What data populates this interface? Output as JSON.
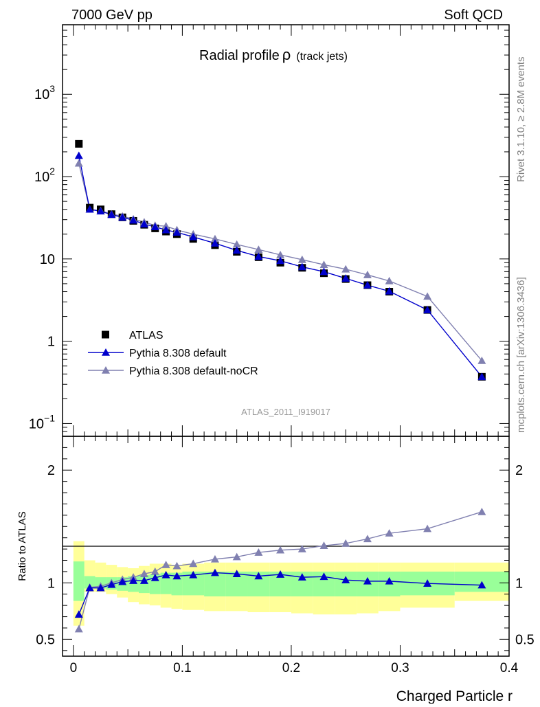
{
  "header": {
    "left": "7000 GeV pp",
    "right": "Soft QCD"
  },
  "side_labels": {
    "rivet": "Rivet 3.1.10, ≥ 2.8M events",
    "source": "mcplots.cern.ch [arXiv:1306.3436]"
  },
  "chart_data": [
    {
      "type": "line",
      "title": "Radial profile",
      "title_symbol": "ρ",
      "title_suffix": "(track jets)",
      "watermark": "ATLAS_2011_I919017",
      "yscale": "log",
      "xlim": [
        -0.01,
        0.4
      ],
      "ylim": [
        0.07,
        7000
      ],
      "yticks": [
        {
          "value": 0.1,
          "label": "10",
          "sup": "−1"
        },
        {
          "value": 1,
          "label": "1",
          "sup": ""
        },
        {
          "value": 10,
          "label": "10",
          "sup": ""
        },
        {
          "value": 100,
          "label": "10",
          "sup": "2"
        },
        {
          "value": 1000,
          "label": "10",
          "sup": "3"
        }
      ],
      "legend": {
        "placement": "middle-left"
      },
      "x": [
        0.005,
        0.015,
        0.025,
        0.035,
        0.045,
        0.055,
        0.065,
        0.075,
        0.085,
        0.095,
        0.11,
        0.13,
        0.15,
        0.17,
        0.19,
        0.21,
        0.23,
        0.25,
        0.27,
        0.29,
        0.325,
        0.375
      ],
      "series": [
        {
          "name": "ATLAS",
          "style": "square",
          "color": "#000000",
          "values": [
            250,
            42,
            40,
            35,
            32,
            29,
            26,
            23.5,
            21.5,
            20,
            17.5,
            14.7,
            12.2,
            10.5,
            9,
            7.8,
            6.7,
            5.7,
            4.8,
            4.0,
            2.4,
            0.37
          ]
        },
        {
          "name": "Pythia 8.308 default",
          "style": "triangle",
          "color": "#0000cc",
          "values": [
            180,
            40,
            38,
            34.5,
            32,
            29.5,
            26.5,
            24.5,
            22.5,
            21,
            18.5,
            15.5,
            12.7,
            10.7,
            9.5,
            8.0,
            7.0,
            5.8,
            4.8,
            4.05,
            2.4,
            0.37
          ]
        },
        {
          "name": "Pythia 8.308 default-noCR",
          "style": "triangle",
          "color": "#8080b0",
          "values": [
            145,
            40,
            38.5,
            35,
            33,
            30.5,
            28,
            25.5,
            25,
            22.5,
            20,
            17.5,
            15,
            13,
            11.2,
            9.8,
            8.5,
            7.5,
            6.4,
            5.4,
            3.5,
            0.58
          ]
        }
      ]
    },
    {
      "type": "line",
      "ylabel": "Ratio to ATLAS",
      "xlabel": "Charged Particle r",
      "xlim": [
        -0.01,
        0.4
      ],
      "ylim": [
        0.35,
        2.3
      ],
      "yticks": [
        0.5,
        1,
        2
      ],
      "ytick_labels": [
        "0.5",
        "1",
        "2"
      ],
      "xticks": [
        0,
        0.1,
        0.2,
        0.3,
        0.4
      ],
      "xtick_labels": [
        "0",
        "0.1",
        "0.2",
        "0.3",
        "0.4"
      ],
      "bands": {
        "bins": [
          [
            0.0,
            0.01
          ],
          [
            0.01,
            0.02
          ],
          [
            0.02,
            0.03
          ],
          [
            0.03,
            0.04
          ],
          [
            0.04,
            0.05
          ],
          [
            0.05,
            0.06
          ],
          [
            0.06,
            0.07
          ],
          [
            0.07,
            0.08
          ],
          [
            0.08,
            0.09
          ],
          [
            0.09,
            0.1
          ],
          [
            0.1,
            0.12
          ],
          [
            0.12,
            0.14
          ],
          [
            0.14,
            0.16
          ],
          [
            0.16,
            0.18
          ],
          [
            0.18,
            0.2
          ],
          [
            0.2,
            0.22
          ],
          [
            0.22,
            0.24
          ],
          [
            0.24,
            0.26
          ],
          [
            0.26,
            0.28
          ],
          [
            0.28,
            0.3
          ],
          [
            0.3,
            0.35
          ],
          [
            0.35,
            0.4
          ]
        ],
        "yellow_lo": [
          0.62,
          0.92,
          0.92,
          0.9,
          0.87,
          0.83,
          0.81,
          0.8,
          0.78,
          0.77,
          0.76,
          0.75,
          0.75,
          0.74,
          0.74,
          0.73,
          0.72,
          0.72,
          0.73,
          0.75,
          0.78,
          0.84
        ],
        "yellow_hi": [
          1.37,
          1.2,
          1.18,
          1.16,
          1.14,
          1.13,
          1.15,
          1.17,
          1.17,
          1.16,
          1.17,
          1.18,
          1.18,
          1.18,
          1.18,
          1.18,
          1.18,
          1.18,
          1.18,
          1.18,
          1.18,
          1.18
        ],
        "green_lo": [
          0.84,
          0.95,
          0.95,
          0.94,
          0.93,
          0.92,
          0.91,
          0.9,
          0.9,
          0.89,
          0.89,
          0.88,
          0.88,
          0.88,
          0.88,
          0.88,
          0.88,
          0.88,
          0.88,
          0.88,
          0.89,
          0.92
        ],
        "green_hi": [
          1.19,
          1.06,
          1.05,
          1.05,
          1.05,
          1.06,
          1.07,
          1.08,
          1.09,
          1.09,
          1.1,
          1.1,
          1.1,
          1.1,
          1.1,
          1.1,
          1.1,
          1.1,
          1.1,
          1.1,
          1.1,
          1.1
        ]
      },
      "series": [
        {
          "name": "Pythia 8.308 default",
          "color": "#0000cc",
          "values": [
            0.72,
            0.955,
            0.955,
            0.985,
            1.01,
            1.02,
            1.02,
            1.045,
            1.07,
            1.06,
            1.07,
            1.09,
            1.08,
            1.06,
            1.075,
            1.05,
            1.055,
            1.025,
            1.015,
            1.015,
            0.995,
            0.98
          ]
        },
        {
          "name": "Pythia 8.308 default-noCR",
          "color": "#8080b0",
          "values": [
            0.59,
            0.96,
            0.97,
            1.0,
            1.03,
            1.05,
            1.08,
            1.1,
            1.16,
            1.15,
            1.17,
            1.21,
            1.23,
            1.27,
            1.29,
            1.3,
            1.33,
            1.35,
            1.39,
            1.44,
            1.48,
            1.63
          ]
        }
      ]
    }
  ]
}
